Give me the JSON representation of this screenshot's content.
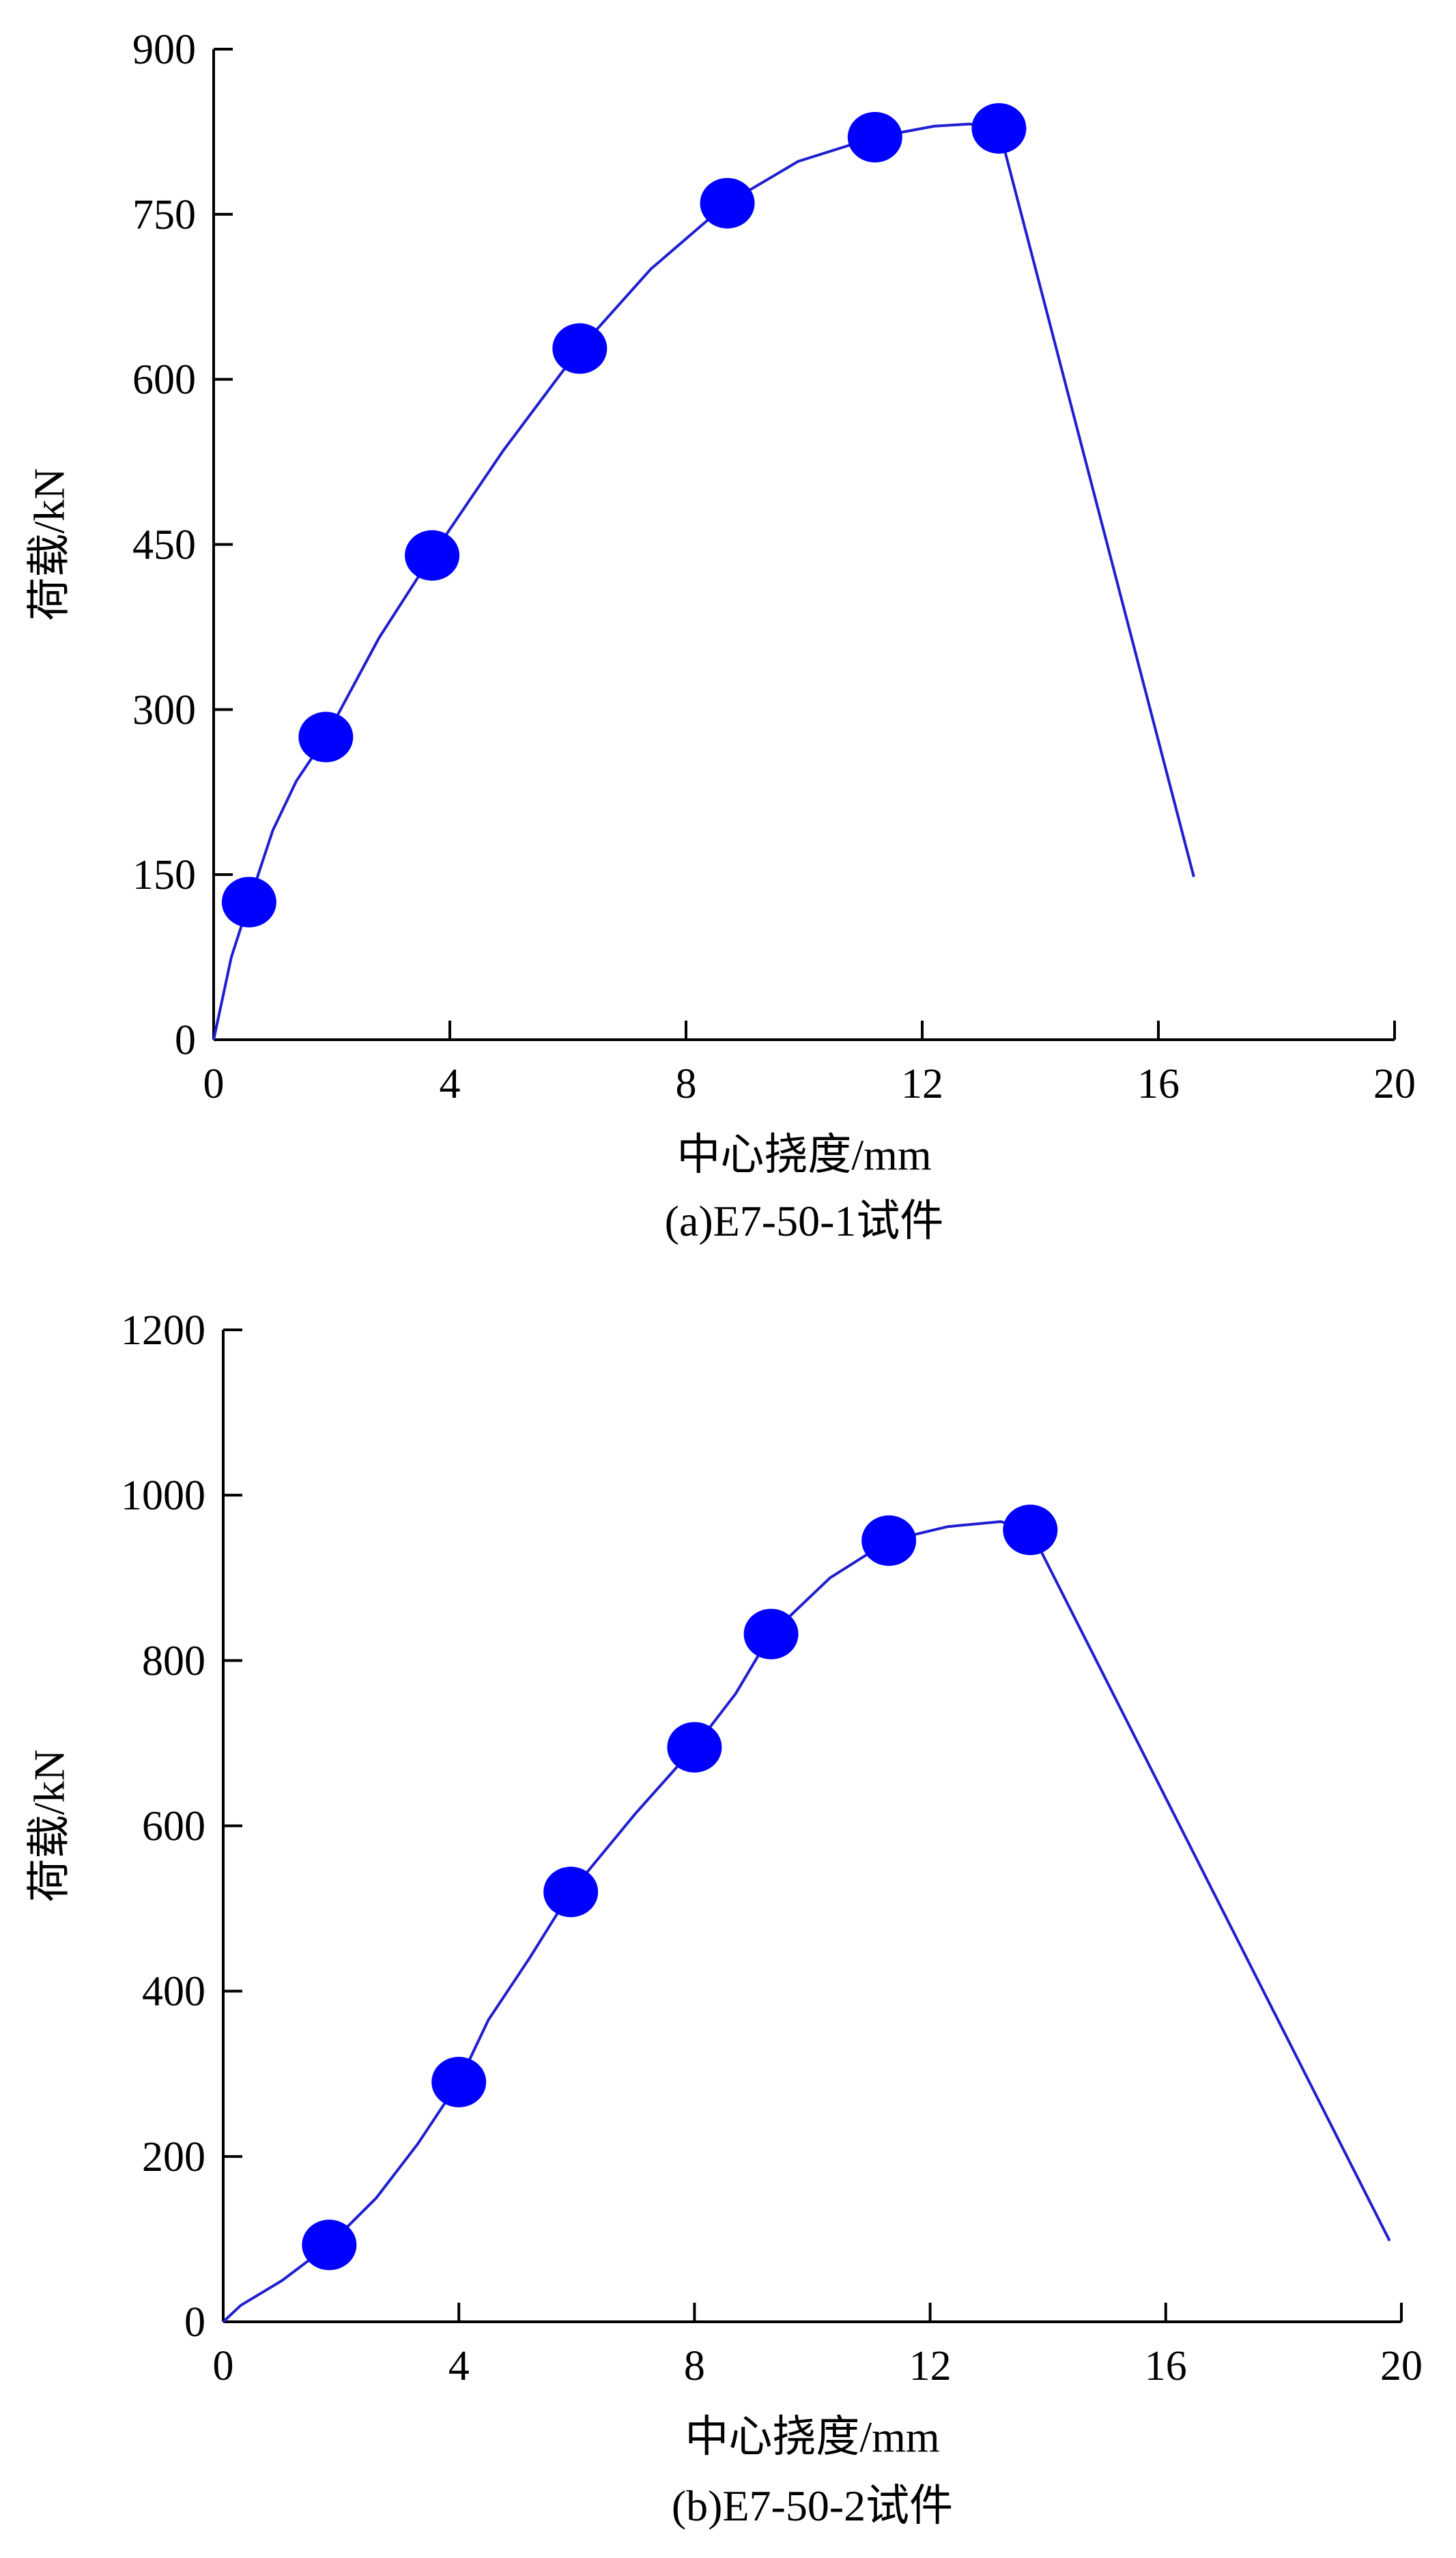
{
  "chart_data": [
    {
      "type": "line",
      "caption": "(a)E7-50-1试件",
      "xlabel": "中心挠度/mm",
      "ylabel": "荷载/kN",
      "xlim": [
        0,
        20
      ],
      "ylim": [
        0,
        900
      ],
      "xticks": [
        0,
        4,
        8,
        12,
        16,
        20
      ],
      "yticks": [
        0,
        150,
        300,
        450,
        600,
        750,
        900
      ],
      "grid": false,
      "colors": {
        "series": "#1f1fd0",
        "marker": "#0000ff"
      },
      "series": [
        {
          "curve": [
            [
              0,
              0
            ],
            [
              0.3,
              75
            ],
            [
              0.6,
              125
            ],
            [
              1.0,
              190
            ],
            [
              1.4,
              235
            ],
            [
              1.9,
              275
            ],
            [
              2.8,
              365
            ],
            [
              3.7,
              440
            ],
            [
              4.9,
              535
            ],
            [
              6.2,
              628
            ],
            [
              7.4,
              700
            ],
            [
              8.7,
              760
            ],
            [
              9.9,
              798
            ],
            [
              11.2,
              820
            ],
            [
              12.2,
              830
            ],
            [
              12.8,
              832
            ],
            [
              13.3,
              828
            ],
            [
              16.6,
              148
            ]
          ],
          "markers": [
            [
              0.6,
              125
            ],
            [
              1.9,
              275
            ],
            [
              3.7,
              440
            ],
            [
              6.2,
              628
            ],
            [
              8.7,
              760
            ],
            [
              11.2,
              820
            ],
            [
              13.3,
              828
            ]
          ]
        }
      ]
    },
    {
      "type": "line",
      "caption": "(b)E7-50-2试件",
      "xlabel": "中心挠度/mm",
      "ylabel": "荷载/kN",
      "xlim": [
        0,
        20
      ],
      "ylim": [
        0,
        1200
      ],
      "xticks": [
        0,
        4,
        8,
        12,
        16,
        20
      ],
      "yticks": [
        0,
        200,
        400,
        600,
        800,
        1000,
        1200
      ],
      "grid": false,
      "colors": {
        "series": "#1f1fd0",
        "marker": "#0000ff"
      },
      "series": [
        {
          "curve": [
            [
              0,
              0
            ],
            [
              0.3,
              20
            ],
            [
              1.0,
              50
            ],
            [
              1.8,
              93
            ],
            [
              2.6,
              150
            ],
            [
              3.3,
              215
            ],
            [
              4.0,
              290
            ],
            [
              4.5,
              365
            ],
            [
              5.2,
              440
            ],
            [
              5.9,
              520
            ],
            [
              7.0,
              615
            ],
            [
              8.0,
              695
            ],
            [
              8.7,
              760
            ],
            [
              9.3,
              832
            ],
            [
              10.3,
              900
            ],
            [
              11.3,
              945
            ],
            [
              12.3,
              962
            ],
            [
              13.2,
              968
            ],
            [
              13.7,
              958
            ],
            [
              19.8,
              98
            ]
          ],
          "markers": [
            [
              1.8,
              93
            ],
            [
              4.0,
              290
            ],
            [
              5.9,
              520
            ],
            [
              8.0,
              695
            ],
            [
              9.3,
              832
            ],
            [
              11.3,
              945
            ],
            [
              13.7,
              958
            ]
          ]
        }
      ]
    }
  ]
}
